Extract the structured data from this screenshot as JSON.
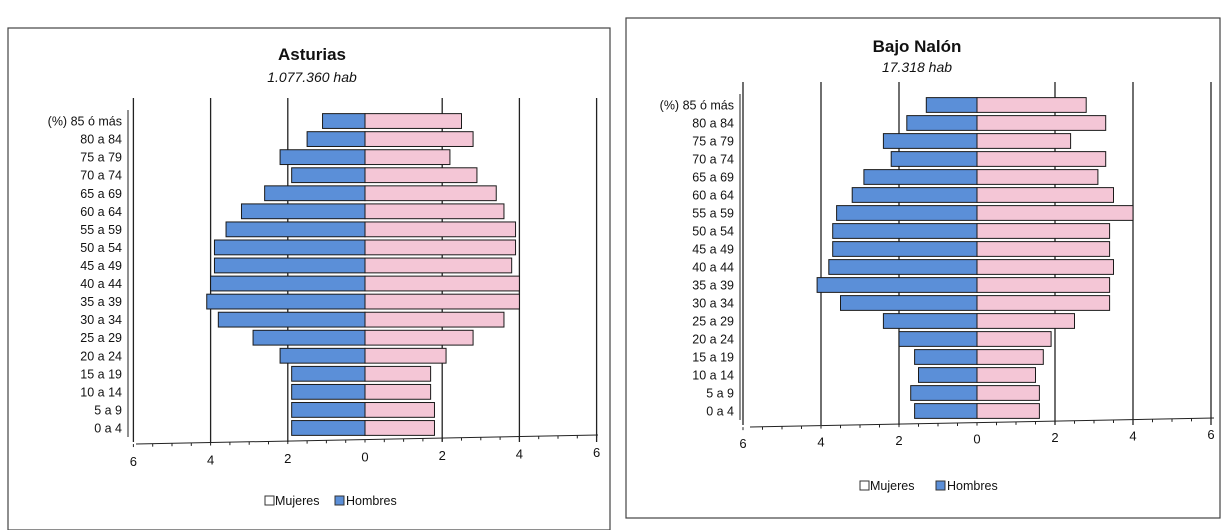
{
  "colors": {
    "hombres": "#5b8fd8",
    "mujeres": "#f4c6d6",
    "bar_stroke": "#1a1a1a",
    "gridline": "#222222"
  },
  "legend": {
    "mujeres_label": "Mujeres",
    "hombres_label": "Hombres"
  },
  "chart_data": [
    {
      "type": "bar",
      "orientation": "horizontal-population-pyramid",
      "title": "Asturias",
      "subtitle": "1.077.360 hab",
      "categories": [
        "0 a 4",
        "5 a 9",
        "10 a 14",
        "15 a 19",
        "20 a 24",
        "25 a 29",
        "30 a 34",
        "35 a 39",
        "40 a 44",
        "45 a 49",
        "50 a 54",
        "55 a 59",
        "60 a 64",
        "65 a 69",
        "70 a 74",
        "75 a 79",
        "80 a 84",
        "(%) 85 ó más"
      ],
      "series": [
        {
          "name": "Hombres",
          "side": "left",
          "values": [
            1.9,
            1.9,
            1.9,
            1.9,
            2.2,
            2.9,
            3.8,
            4.1,
            4.0,
            3.9,
            3.9,
            3.6,
            3.2,
            2.6,
            1.9,
            2.2,
            1.5,
            1.1
          ]
        },
        {
          "name": "Mujeres",
          "side": "right",
          "values": [
            1.8,
            1.8,
            1.7,
            1.7,
            2.1,
            2.8,
            3.6,
            4.0,
            4.0,
            3.8,
            3.9,
            3.9,
            3.6,
            3.4,
            2.9,
            2.2,
            2.8,
            2.5
          ]
        }
      ],
      "xlim": [
        -6,
        6
      ],
      "ticks": [
        6,
        4,
        2,
        0,
        2,
        4,
        6
      ],
      "legend_placement": "bottom"
    },
    {
      "type": "bar",
      "orientation": "horizontal-population-pyramid",
      "title": "Bajo Nalón",
      "subtitle": "17.318 hab",
      "categories": [
        "0 a 4",
        "5 a 9",
        "10 a 14",
        "15 a 19",
        "20 a 24",
        "25 a 29",
        "30 a 34",
        "35 a 39",
        "40 a 44",
        "45 a 49",
        "50 a 54",
        "55 a 59",
        "60 a 64",
        "65 a 69",
        "70 a 74",
        "75 a 79",
        "80 a 84",
        "(%) 85 ó más"
      ],
      "series": [
        {
          "name": "Hombres",
          "side": "left",
          "values": [
            1.6,
            1.7,
            1.5,
            1.6,
            2.0,
            2.4,
            3.5,
            4.1,
            3.8,
            3.7,
            3.7,
            3.6,
            3.2,
            2.9,
            2.2,
            2.4,
            1.8,
            1.3
          ]
        },
        {
          "name": "Mujeres",
          "side": "right",
          "values": [
            1.6,
            1.6,
            1.5,
            1.7,
            1.9,
            2.5,
            3.4,
            3.4,
            3.5,
            3.4,
            3.4,
            4.0,
            3.5,
            3.1,
            3.3,
            2.4,
            3.3,
            2.8
          ]
        }
      ],
      "xlim": [
        -6,
        6
      ],
      "ticks": [
        6,
        4,
        2,
        0,
        2,
        4,
        6
      ],
      "legend_placement": "bottom"
    }
  ]
}
